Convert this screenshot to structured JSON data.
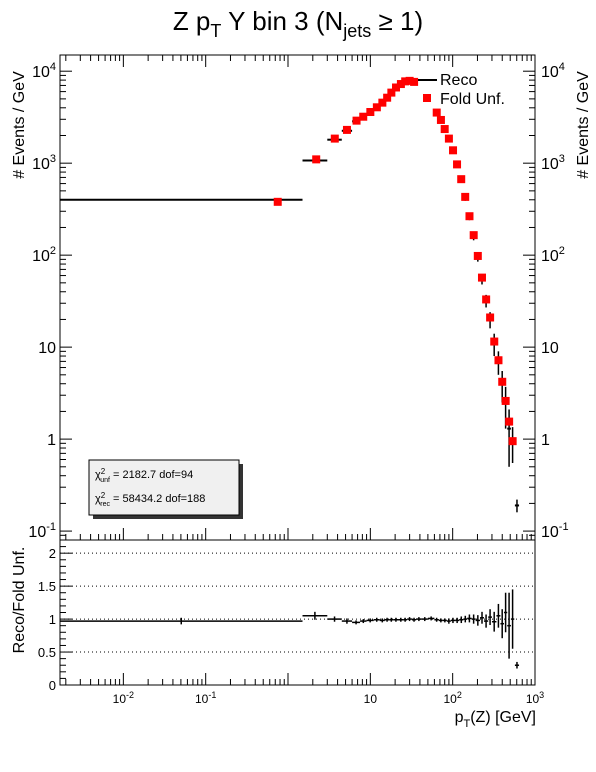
{
  "title": {
    "main": "Z p",
    "sub_T": "T",
    "mid": " Y bin 3 (N",
    "sub_jets": "jets",
    "tail": " ≥ 1)"
  },
  "legend": {
    "reco": "Reco",
    "fold": "Fold Unf."
  },
  "stats": {
    "chi_unf_label": "unf",
    "chi_unf_value": "2182.7",
    "dof_unf": "dof=94",
    "chi_rec_label": "rec",
    "chi_rec_value": "58434.2",
    "dof_rec": "dof=188"
  },
  "colors": {
    "reco": "#000000",
    "fold": "#ff0000",
    "grid": "#000000"
  },
  "chart_data": [
    {
      "type": "scatter",
      "title": "Z pT Y bin 3 (Njets ≥ 1)",
      "xlabel": "pT(Z) [GeV]",
      "ylabel": "# Events / GeV",
      "xscale": "log",
      "yscale": "log",
      "xlim": [
        0.0017,
        1000
      ],
      "ylim": [
        0.08,
        15000
      ],
      "legend": "top-right",
      "x_ticks": [
        "10^-2",
        "10^-1",
        "10",
        "10^2",
        "10^3"
      ],
      "y_ticks": [
        "10^-1",
        "1",
        "10",
        "10^2",
        "10^3",
        "10^4"
      ],
      "series": [
        {
          "name": "Reco",
          "style": "horizontal-bars",
          "points": [
            {
              "x0": 0.0017,
              "x1": 1.5,
              "y": 400,
              "err": 0
            },
            {
              "x0": 1.5,
              "x1": 3,
              "y": 1070,
              "err": 60
            },
            {
              "x0": 3,
              "x1": 4.5,
              "y": 1800,
              "err": 80
            },
            {
              "x0": 4.5,
              "x1": 6,
              "y": 2250,
              "err": 100
            },
            {
              "x0": 6,
              "x1": 7.5,
              "y": 2850,
              "err": 110
            },
            {
              "x0": 7.5,
              "x1": 9,
              "y": 3150,
              "err": 120
            },
            {
              "x0": 9,
              "x1": 11,
              "y": 3550,
              "err": 130
            },
            {
              "x0": 11,
              "x1": 13,
              "y": 4000,
              "err": 140
            },
            {
              "x0": 13,
              "x1": 15,
              "y": 4500,
              "err": 150
            },
            {
              "x0": 15,
              "x1": 17,
              "y": 5100,
              "err": 160
            },
            {
              "x0": 17,
              "x1": 19,
              "y": 5800,
              "err": 170
            },
            {
              "x0": 19,
              "x1": 22,
              "y": 6600,
              "err": 180
            },
            {
              "x0": 22,
              "x1": 25,
              "y": 7200,
              "err": 190
            },
            {
              "x0": 25,
              "x1": 28,
              "y": 7700,
              "err": 200
            },
            {
              "x0": 28,
              "x1": 32,
              "y": 7800,
              "err": 200
            },
            {
              "x0": 32,
              "x1": 36,
              "y": 7600,
              "err": 200
            },
            {
              "x0": 60,
              "x1": 68,
              "y": 3500,
              "err": 100
            },
            {
              "x0": 68,
              "x1": 76,
              "y": 2900,
              "err": 90
            },
            {
              "x0": 76,
              "x1": 85,
              "y": 2300,
              "err": 80
            },
            {
              "x0": 85,
              "x1": 95,
              "y": 1800,
              "err": 70
            },
            {
              "x0": 95,
              "x1": 107,
              "y": 1350,
              "err": 60
            },
            {
              "x0": 107,
              "x1": 120,
              "y": 950,
              "err": 50
            },
            {
              "x0": 120,
              "x1": 135,
              "y": 650,
              "err": 40
            },
            {
              "x0": 135,
              "x1": 150,
              "y": 420,
              "err": 30
            },
            {
              "x0": 150,
              "x1": 170,
              "y": 260,
              "err": 20
            },
            {
              "x0": 170,
              "x1": 190,
              "y": 160,
              "err": 15
            },
            {
              "x0": 190,
              "x1": 215,
              "y": 95,
              "err": 10
            },
            {
              "x0": 215,
              "x1": 240,
              "y": 55,
              "err": 7
            },
            {
              "x0": 240,
              "x1": 270,
              "y": 32,
              "err": 5
            },
            {
              "x0": 270,
              "x1": 300,
              "y": 20,
              "err": 4
            },
            {
              "x0": 300,
              "x1": 340,
              "y": 11,
              "err": 3
            },
            {
              "x0": 340,
              "x1": 380,
              "y": 7,
              "err": 2
            },
            {
              "x0": 380,
              "x1": 420,
              "y": 4,
              "err": 1.5
            },
            {
              "x0": 420,
              "x1": 460,
              "y": 2.5,
              "err": 1.2
            },
            {
              "x0": 460,
              "x1": 510,
              "y": 1.3,
              "err": 0.8
            },
            {
              "x0": 510,
              "x1": 560,
              "y": 0.95,
              "err": 0.4
            },
            {
              "x0": 570,
              "x1": 640,
              "y": 0.19,
              "err": 0.03
            }
          ]
        },
        {
          "name": "Fold Unf.",
          "style": "squares",
          "points": [
            {
              "x": 0.75,
              "y": 380
            },
            {
              "x": 2.2,
              "y": 1100
            },
            {
              "x": 3.7,
              "y": 1850
            },
            {
              "x": 5.2,
              "y": 2300
            },
            {
              "x": 6.8,
              "y": 2900
            },
            {
              "x": 8.2,
              "y": 3200
            },
            {
              "x": 10,
              "y": 3600
            },
            {
              "x": 12,
              "y": 4050
            },
            {
              "x": 14,
              "y": 4550
            },
            {
              "x": 16,
              "y": 5150
            },
            {
              "x": 18,
              "y": 5850
            },
            {
              "x": 20.5,
              "y": 6650
            },
            {
              "x": 23.5,
              "y": 7250
            },
            {
              "x": 26.5,
              "y": 7750
            },
            {
              "x": 30,
              "y": 7850
            },
            {
              "x": 34,
              "y": 7650
            },
            {
              "x": 64,
              "y": 3550
            },
            {
              "x": 72,
              "y": 2950
            },
            {
              "x": 80,
              "y": 2350
            },
            {
              "x": 90,
              "y": 1850
            },
            {
              "x": 101,
              "y": 1380
            },
            {
              "x": 113,
              "y": 970
            },
            {
              "x": 127,
              "y": 670
            },
            {
              "x": 142,
              "y": 430
            },
            {
              "x": 160,
              "y": 265
            },
            {
              "x": 180,
              "y": 165
            },
            {
              "x": 202,
              "y": 98
            },
            {
              "x": 227,
              "y": 57
            },
            {
              "x": 255,
              "y": 33
            },
            {
              "x": 285,
              "y": 21
            },
            {
              "x": 320,
              "y": 11.5
            },
            {
              "x": 360,
              "y": 7.2
            },
            {
              "x": 400,
              "y": 4.2
            },
            {
              "x": 440,
              "y": 2.6
            },
            {
              "x": 485,
              "y": 1.55
            },
            {
              "x": 535,
              "y": 0.95
            }
          ]
        }
      ]
    },
    {
      "type": "scatter",
      "ylabel": "Reco/Fold Unf.",
      "xlabel": "pT(Z) [GeV]",
      "xscale": "log",
      "xlim": [
        0.0017,
        1000
      ],
      "ylim": [
        0,
        2.2
      ],
      "y_ticks": [
        "0",
        "0.5",
        "1",
        "1.5",
        "2"
      ],
      "grid": "dotted at 0.5, 1, 1.5, 2",
      "series": [
        {
          "name": "Reco/Fold Unf.",
          "points": [
            {
              "x0": 0.0017,
              "x1": 1.5,
              "y": 0.97,
              "err": 0.05
            },
            {
              "x0": 1.5,
              "x1": 3,
              "y": 1.05,
              "err": 0.06
            },
            {
              "x0": 3,
              "x1": 4.5,
              "y": 1.0,
              "err": 0.04
            },
            {
              "x0": 4.5,
              "x1": 6,
              "y": 0.97,
              "err": 0.04
            },
            {
              "x0": 6,
              "x1": 7.5,
              "y": 0.95,
              "err": 0.03
            },
            {
              "x0": 7.5,
              "x1": 9,
              "y": 0.97,
              "err": 0.03
            },
            {
              "x0": 9,
              "x1": 11,
              "y": 0.98,
              "err": 0.03
            },
            {
              "x0": 11,
              "x1": 13,
              "y": 0.99,
              "err": 0.03
            },
            {
              "x0": 13,
              "x1": 15,
              "y": 0.98,
              "err": 0.03
            },
            {
              "x0": 15,
              "x1": 17,
              "y": 0.99,
              "err": 0.03
            },
            {
              "x0": 17,
              "x1": 19,
              "y": 0.99,
              "err": 0.03
            },
            {
              "x0": 19,
              "x1": 22,
              "y": 0.99,
              "err": 0.03
            },
            {
              "x0": 22,
              "x1": 25,
              "y": 0.99,
              "err": 0.03
            },
            {
              "x0": 25,
              "x1": 28,
              "y": 0.99,
              "err": 0.03
            },
            {
              "x0": 28,
              "x1": 32,
              "y": 1.0,
              "err": 0.03
            },
            {
              "x0": 32,
              "x1": 36,
              "y": 0.99,
              "err": 0.03
            },
            {
              "x0": 36,
              "x1": 42,
              "y": 1.0,
              "err": 0.03
            },
            {
              "x0": 42,
              "x1": 50,
              "y": 1.0,
              "err": 0.03
            },
            {
              "x0": 50,
              "x1": 60,
              "y": 1.01,
              "err": 0.03
            },
            {
              "x0": 60,
              "x1": 68,
              "y": 0.99,
              "err": 0.03
            },
            {
              "x0": 68,
              "x1": 76,
              "y": 0.98,
              "err": 0.03
            },
            {
              "x0": 76,
              "x1": 85,
              "y": 0.98,
              "err": 0.03
            },
            {
              "x0": 85,
              "x1": 95,
              "y": 0.97,
              "err": 0.04
            },
            {
              "x0": 95,
              "x1": 107,
              "y": 0.98,
              "err": 0.04
            },
            {
              "x0": 107,
              "x1": 120,
              "y": 0.98,
              "err": 0.04
            },
            {
              "x0": 120,
              "x1": 135,
              "y": 0.99,
              "err": 0.05
            },
            {
              "x0": 135,
              "x1": 150,
              "y": 1.0,
              "err": 0.05
            },
            {
              "x0": 150,
              "x1": 170,
              "y": 1.01,
              "err": 0.06
            },
            {
              "x0": 170,
              "x1": 190,
              "y": 1.0,
              "err": 0.07
            },
            {
              "x0": 190,
              "x1": 215,
              "y": 0.98,
              "err": 0.08
            },
            {
              "x0": 215,
              "x1": 240,
              "y": 1.02,
              "err": 0.09
            },
            {
              "x0": 240,
              "x1": 270,
              "y": 0.97,
              "err": 0.1
            },
            {
              "x0": 270,
              "x1": 300,
              "y": 1.03,
              "err": 0.12
            },
            {
              "x0": 300,
              "x1": 340,
              "y": 0.96,
              "err": 0.15
            },
            {
              "x0": 340,
              "x1": 380,
              "y": 1.05,
              "err": 0.18
            },
            {
              "x0": 380,
              "x1": 420,
              "y": 0.93,
              "err": 0.22
            },
            {
              "x0": 420,
              "x1": 460,
              "y": 1.1,
              "err": 0.3
            },
            {
              "x0": 460,
              "x1": 510,
              "y": 0.9,
              "err": 0.5
            },
            {
              "x0": 510,
              "x1": 560,
              "y": 1.0,
              "err": 0.45
            },
            {
              "x0": 570,
              "x1": 640,
              "y": 0.3,
              "err": 0.05
            }
          ]
        }
      ]
    }
  ]
}
